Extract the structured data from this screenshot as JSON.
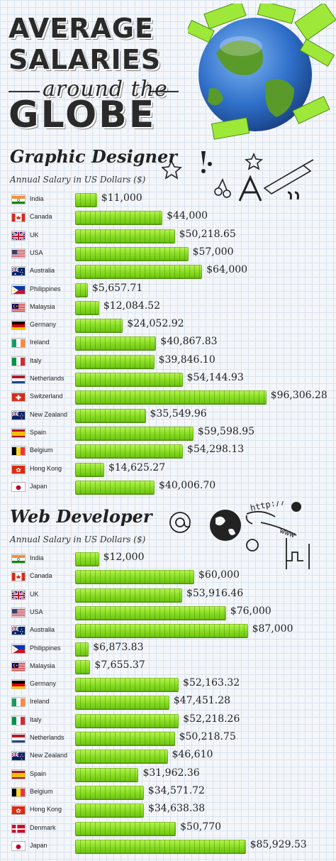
{
  "header": {
    "title_line1": "AVERAGE",
    "title_line2": "SALARIES",
    "title_line3": "around the",
    "title_line4": "GLOBE"
  },
  "colors": {
    "bar": "#86dc22",
    "grid": "#d9e3f0",
    "globe_ocean": "#2f6fc9",
    "globe_land": "#5a9a2a"
  },
  "chart_data": [
    {
      "type": "bar",
      "title": "Graphic Designer",
      "subtitle": "Annual Salary in US Dollars ($)",
      "categories": [
        "India",
        "Canada",
        "UK",
        "USA",
        "Australia",
        "Philippines",
        "Malaysia",
        "Germany",
        "Ireland",
        "Italy",
        "Netherlands",
        "Switzerland",
        "New Zealand",
        "Spain",
        "Belgium",
        "Hong Kong",
        "Japan"
      ],
      "flags": [
        "india",
        "canada",
        "uk",
        "usa",
        "australia",
        "philippines",
        "malaysia",
        "germany",
        "ireland",
        "italy",
        "netherlands",
        "switzerland",
        "new-zealand",
        "spain",
        "belgium",
        "hong-kong",
        "japan"
      ],
      "values": [
        11000,
        44000,
        50218.65,
        57000,
        64000,
        5657.71,
        12084.52,
        24052.92,
        40867.83,
        39846.1,
        54144.93,
        96306.28,
        35549.96,
        59598.95,
        54298.13,
        14625.27,
        40006.7
      ],
      "labels": [
        "$11,000",
        "$44,000",
        "$50,218.65",
        "$57,000",
        "$64,000",
        "$5,657.71",
        "$12,084.52",
        "$24,052.92",
        "$40,867.83",
        "$39,846.10",
        "$54,144.93",
        "$96,306.28",
        "$35,549.96",
        "$59,598.95",
        "$54,298.13",
        "$14,625.27",
        "$40,006.70"
      ]
    },
    {
      "type": "bar",
      "title": "Web Developer",
      "subtitle": "Annual Salary in US Dollars ($)",
      "categories": [
        "India",
        "Canada",
        "UK",
        "USA",
        "Australia",
        "Philippines",
        "Malaysia",
        "Germany",
        "Ireland",
        "Italy",
        "Netherlands",
        "New Zealand",
        "Spain",
        "Belgium",
        "Hong Kong",
        "Denmark",
        "Japan"
      ],
      "flags": [
        "india",
        "canada",
        "uk",
        "usa",
        "australia",
        "philippines",
        "malaysia",
        "germany",
        "ireland",
        "italy",
        "netherlands",
        "new-zealand",
        "spain",
        "belgium",
        "hong-kong",
        "denmark",
        "japan"
      ],
      "values": [
        12000,
        60000,
        53916.46,
        76000,
        87000,
        6873.83,
        7655.37,
        52163.32,
        47451.28,
        52218.26,
        50218.75,
        46610,
        31962.36,
        34571.72,
        34638.38,
        50770,
        85929.53
      ],
      "labels": [
        "$12,000",
        "$60,000",
        "$53,916.46",
        "$76,000",
        "$87,000",
        "$6,873.83",
        "$7,655.37",
        "$52,163.32",
        "$47,451.28",
        "$52,218.26",
        "$50,218.75",
        "$46,610",
        "$31,962.36",
        "$34,571.72",
        "$34,638.38",
        "$50,770",
        "$85,929.53"
      ]
    }
  ]
}
